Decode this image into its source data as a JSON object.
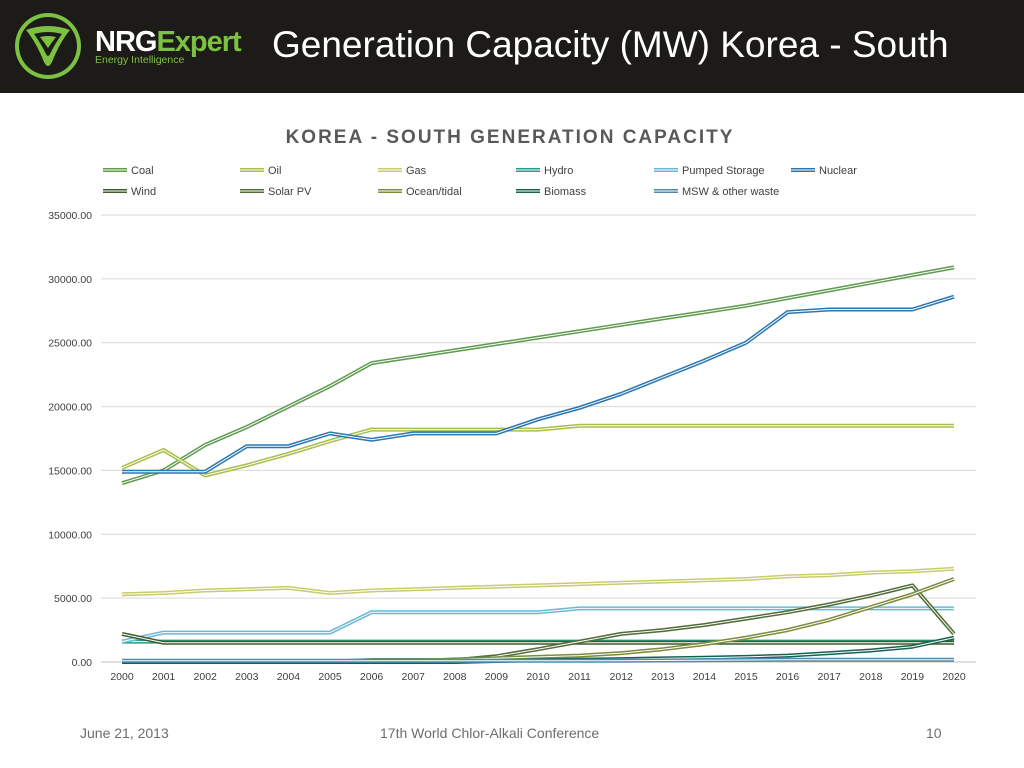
{
  "header": {
    "brand_nrg": "NRG",
    "brand_expert": "Expert",
    "brand_tagline": "Energy Intelligence",
    "slide_title": "Generation Capacity (MW) Korea - South"
  },
  "footer": {
    "date": "June 21, 2013",
    "conference": "17th World Chlor-Alkali Conference",
    "page_number": "10"
  },
  "colors": {
    "header_bg": "#1c1b17",
    "brand_green": "#7cc142",
    "chart_title": "#595959",
    "gridline": "#d9d9d9"
  },
  "icons": {
    "logo": "nrgexpert-triangle-logo-icon"
  },
  "chart_data": {
    "type": "line",
    "title": "KOREA - SOUTH GENERATION CAPACITY",
    "xlabel": "",
    "ylabel": "",
    "ylim": [
      0,
      35000
    ],
    "yticks": [
      "0.00",
      "5000.00",
      "10000.00",
      "15000.00",
      "20000.00",
      "25000.00",
      "30000.00",
      "35000.00"
    ],
    "ytick_values": [
      0,
      5000,
      10000,
      15000,
      20000,
      25000,
      30000,
      35000
    ],
    "grid": true,
    "legend_position": "top",
    "categories": [
      "2000",
      "2001",
      "2002",
      "2003",
      "2004",
      "2005",
      "2006",
      "2007",
      "2008",
      "2009",
      "2010",
      "2011",
      "2012",
      "2013",
      "2014",
      "2015",
      "2016",
      "2017",
      "2018",
      "2019",
      "2020"
    ],
    "series": [
      {
        "name": "Coal",
        "color": "#5f9a4f",
        "values": [
          14000,
          15000,
          17000,
          18400,
          20000,
          21600,
          23400,
          23900,
          24400,
          24900,
          25400,
          25900,
          26400,
          26900,
          27400,
          27900,
          28500,
          29100,
          29700,
          30300,
          30900
        ]
      },
      {
        "name": "Oil",
        "color": "#a8bf4c",
        "values": [
          15200,
          16600,
          14600,
          15400,
          16300,
          17300,
          18200,
          18200,
          18200,
          18200,
          18200,
          18500,
          18500,
          18500,
          18500,
          18500,
          18500,
          18500,
          18500,
          18500,
          18500
        ]
      },
      {
        "name": "Gas",
        "color": "#c8cc6e",
        "values": [
          5300,
          5400,
          5600,
          5700,
          5800,
          5400,
          5600,
          5700,
          5800,
          5900,
          6000,
          6100,
          6200,
          6300,
          6400,
          6500,
          6700,
          6800,
          7000,
          7100,
          7300
        ]
      },
      {
        "name": "Hydro",
        "color": "#1f9e8a",
        "values": [
          1600,
          1600,
          1600,
          1600,
          1600,
          1600,
          1600,
          1600,
          1600,
          1600,
          1600,
          1600,
          1600,
          1600,
          1600,
          1600,
          1600,
          1600,
          1600,
          1600,
          1600
        ]
      },
      {
        "name": "Pumped Storage",
        "color": "#6cb8d2",
        "values": [
          1600,
          2300,
          2300,
          2300,
          2300,
          2300,
          3900,
          3900,
          3900,
          3900,
          3900,
          4200,
          4200,
          4200,
          4200,
          4200,
          4200,
          4200,
          4200,
          4200,
          4200
        ]
      },
      {
        "name": "Nuclear",
        "color": "#2a77b1",
        "values": [
          14900,
          14900,
          14900,
          16900,
          16900,
          17900,
          17400,
          17900,
          17900,
          17900,
          19000,
          19900,
          21000,
          22300,
          23600,
          25000,
          27400,
          27600,
          27600,
          27600,
          28600
        ]
      },
      {
        "name": "Wind",
        "color": "#3f5a2f",
        "values": [
          2200,
          1500,
          1500,
          1500,
          1500,
          1500,
          1500,
          1500,
          1500,
          1500,
          1500,
          1500,
          1500,
          1500,
          1500,
          1500,
          1500,
          1500,
          1500,
          1500,
          1500
        ]
      },
      {
        "name": "Solar PV",
        "color": "#4f6b36",
        "values": [
          0,
          0,
          0,
          0,
          0,
          30,
          150,
          150,
          150,
          450,
          1000,
          1600,
          2200,
          2500,
          2900,
          3400,
          3900,
          4500,
          5200,
          6000,
          2200
        ]
      },
      {
        "name": "Ocean/tidal",
        "color": "#7b8c3a",
        "values": [
          50,
          50,
          50,
          50,
          50,
          50,
          50,
          50,
          200,
          300,
          400,
          500,
          700,
          1000,
          1400,
          1900,
          2500,
          3300,
          4300,
          5300,
          6500
        ]
      },
      {
        "name": "Biomass",
        "color": "#17614f",
        "values": [
          0,
          0,
          0,
          0,
          0,
          0,
          0,
          0,
          0,
          80,
          130,
          180,
          230,
          280,
          330,
          400,
          500,
          700,
          900,
          1200,
          1900
        ]
      },
      {
        "name": "MSW & other waste",
        "color": "#4f8aa8",
        "values": [
          100,
          100,
          100,
          100,
          100,
          100,
          100,
          100,
          100,
          100,
          100,
          100,
          100,
          120,
          140,
          160,
          180,
          180,
          180,
          180,
          180
        ]
      }
    ]
  }
}
